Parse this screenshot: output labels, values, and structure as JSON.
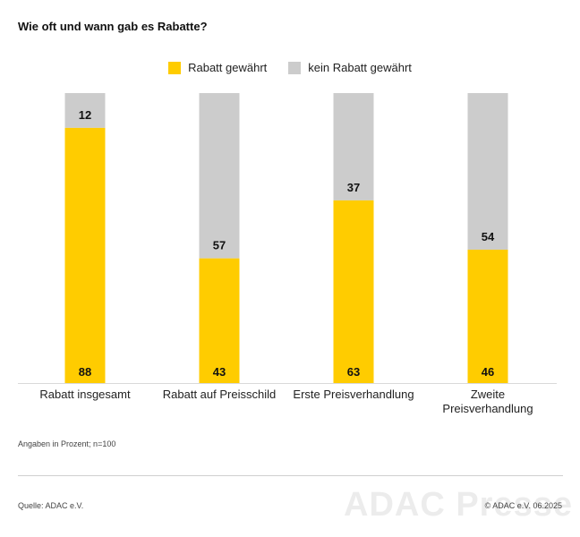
{
  "title": "Wie oft und wann gab es Rabatte?",
  "colors": {
    "granted": "#FFCC00",
    "not_granted": "#CCCCCC",
    "axis": "#d9d9d9"
  },
  "legend": [
    {
      "label": "Rabatt gewährt",
      "color": "#FFCC00"
    },
    {
      "label": "kein Rabatt gewährt",
      "color": "#CCCCCC"
    }
  ],
  "chart_data": {
    "type": "bar",
    "stacked": true,
    "categories": [
      [
        "Rabatt insgesamt"
      ],
      [
        "Rabatt auf Preisschild"
      ],
      [
        "Erste Preisverhandlung"
      ],
      [
        "Zweite",
        "Preisverhandlung"
      ]
    ],
    "series": [
      {
        "name": "Rabatt gewährt",
        "values": [
          88,
          43,
          63,
          46
        ]
      },
      {
        "name": "kein Rabatt gewährt",
        "values": [
          12,
          57,
          37,
          54
        ]
      }
    ],
    "ylim": [
      0,
      100
    ],
    "legend_position": "top-center",
    "grid": false
  },
  "note": "Angaben in Prozent; n=100",
  "source": "Quelle: ADAC e.V.",
  "copyright": "© ADAC e.V. 06.2025",
  "watermark": "ADAC Presse"
}
